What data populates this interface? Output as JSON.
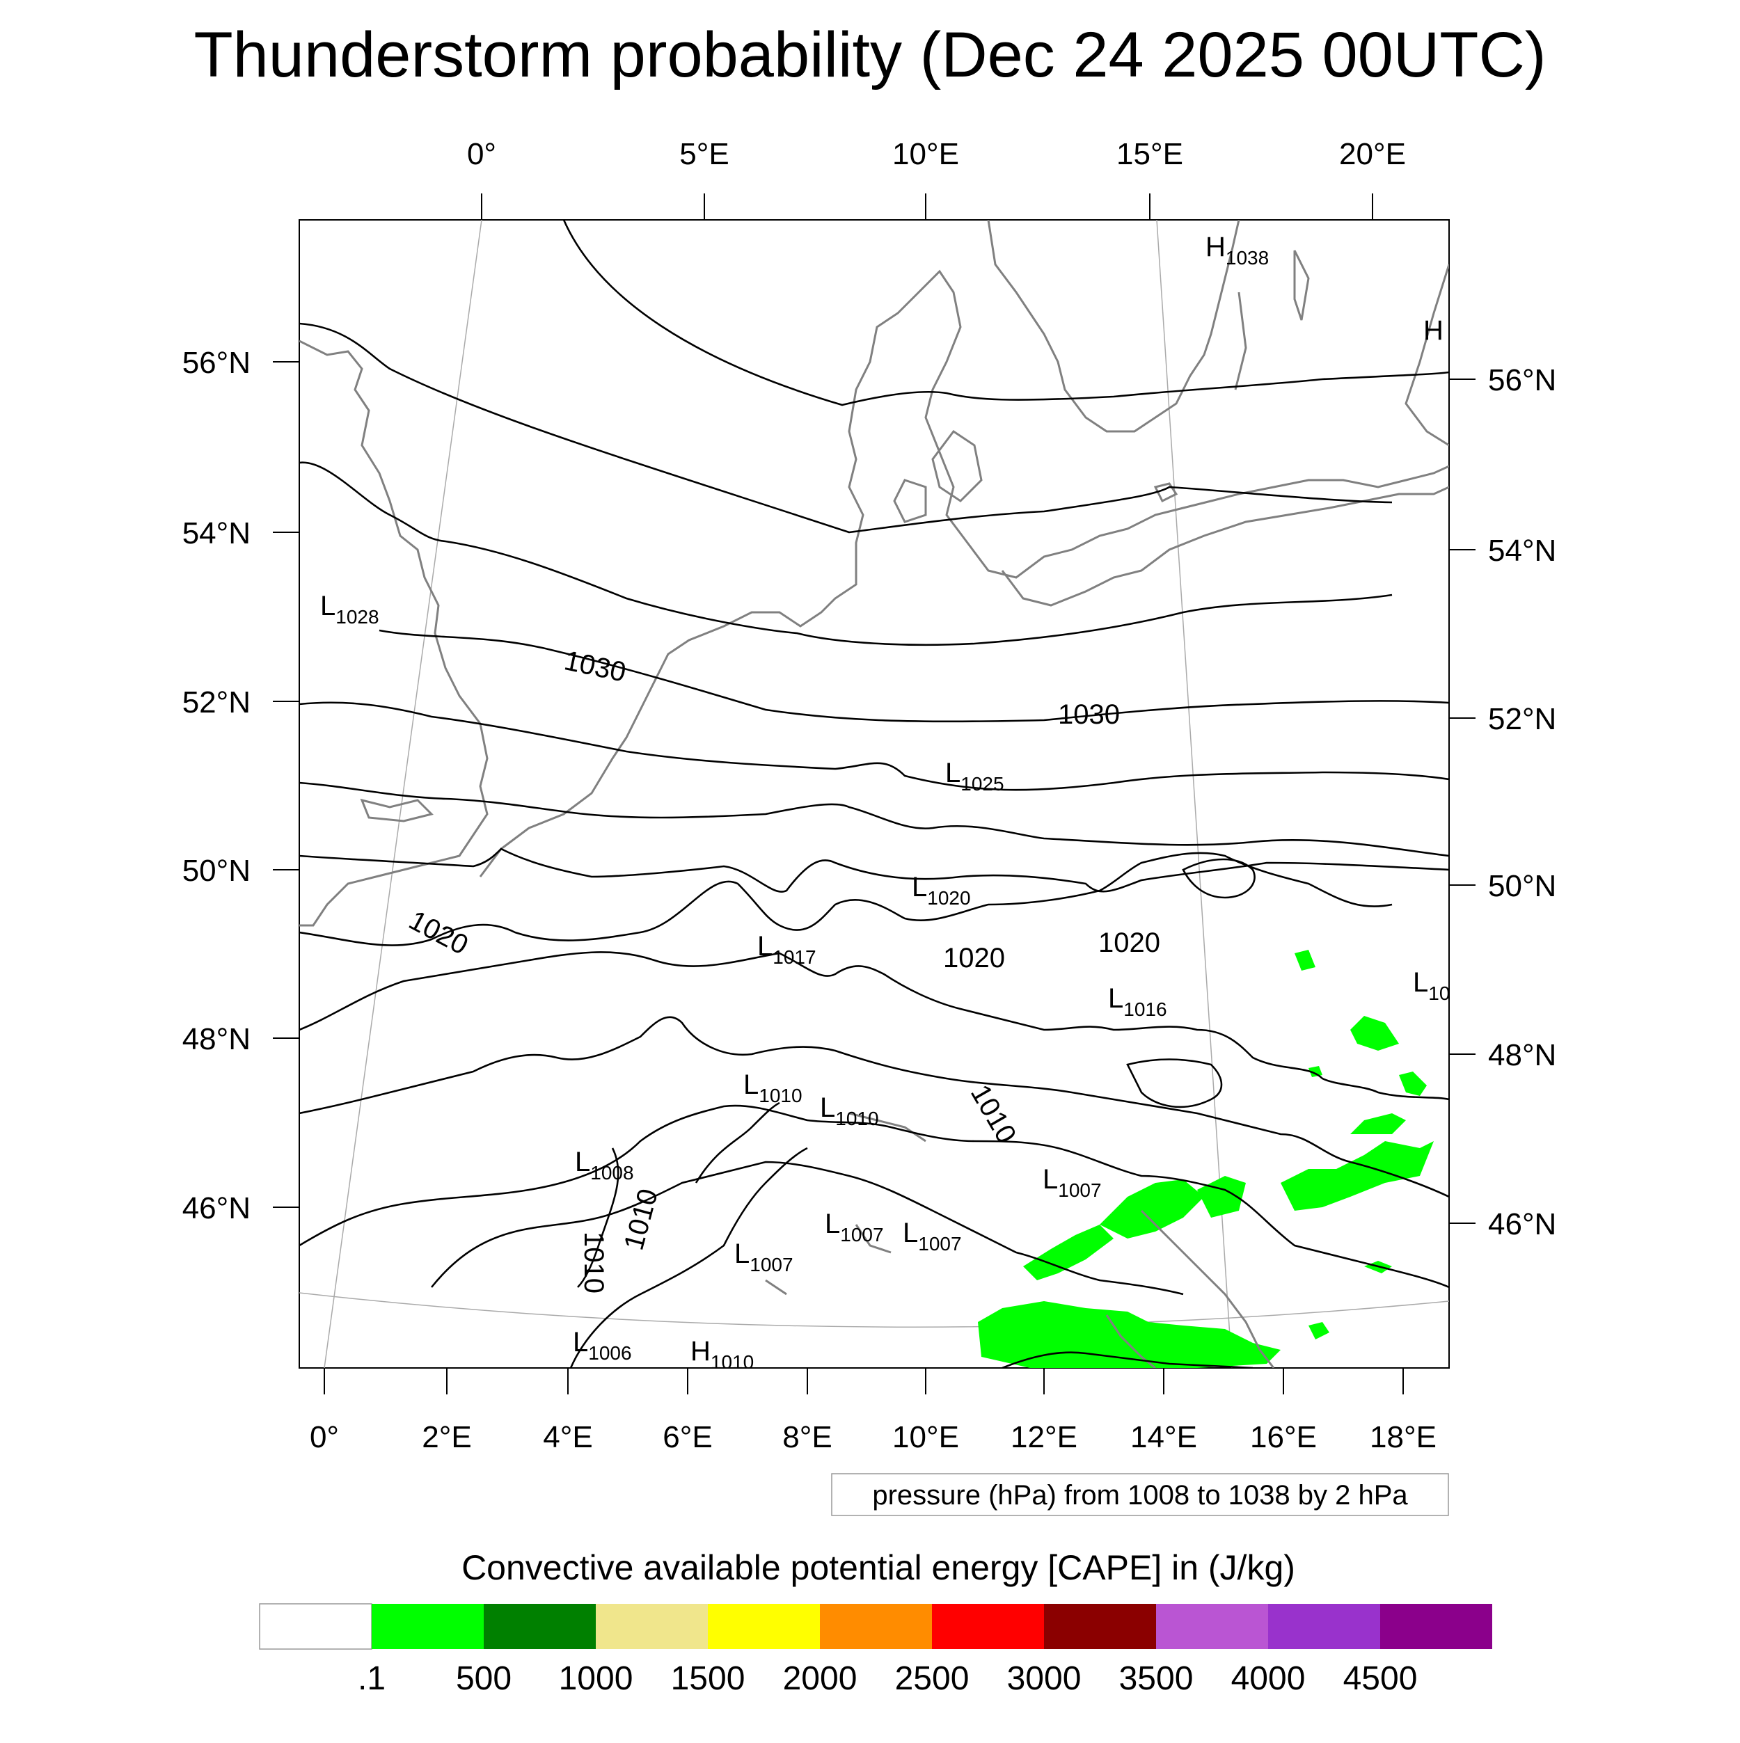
{
  "title": "Thunderstorm probability (Dec 24 2025 00UTC)",
  "top_lon_labels": [
    "0°",
    "5°E",
    "10°E",
    "15°E",
    "20°E"
  ],
  "bottom_lon_labels": [
    "0°",
    "2°E",
    "4°E",
    "6°E",
    "8°E",
    "10°E",
    "12°E",
    "14°E",
    "16°E",
    "18°E"
  ],
  "left_lat_labels": [
    "56°N",
    "54°N",
    "52°N",
    "50°N",
    "48°N",
    "46°N"
  ],
  "right_lat_labels": [
    "56°N",
    "54°N",
    "52°N",
    "50°N",
    "48°N",
    "46°N"
  ],
  "pressure_note": "pressure (hPa) from 1008 to 1038 by 2 hPa",
  "contour_labels": [
    "1030",
    "1030",
    "1020",
    "1020",
    "1020",
    "1010",
    "1010",
    "1010"
  ],
  "pressure_centers": [
    {
      "letter": "H",
      "value": "1038"
    },
    {
      "letter": "H",
      "value": ""
    },
    {
      "letter": "L",
      "value": "1028"
    },
    {
      "letter": "L",
      "value": "1025"
    },
    {
      "letter": "L",
      "value": "1020"
    },
    {
      "letter": "L",
      "value": "1017"
    },
    {
      "letter": "L",
      "value": "1016"
    },
    {
      "letter": "L",
      "value": "10"
    },
    {
      "letter": "L",
      "value": "1010"
    },
    {
      "letter": "L",
      "value": "1010"
    },
    {
      "letter": "L",
      "value": "1008"
    },
    {
      "letter": "L",
      "value": "1007"
    },
    {
      "letter": "L",
      "value": "1007"
    },
    {
      "letter": "L",
      "value": "1007"
    },
    {
      "letter": "L",
      "value": "1007"
    },
    {
      "letter": "L",
      "value": "1006"
    },
    {
      "letter": "H",
      "value": "1010"
    }
  ],
  "contour_free_labels": [
    "1010"
  ],
  "colorbar": {
    "title": "Convective available potential energy [CAPE] in (J/kg)",
    "colors": [
      "#ffffff",
      "#00ff00",
      "#008000",
      "#f0e68c",
      "#ffff00",
      "#ff8c00",
      "#ff0000",
      "#8b0000",
      "#ba55d3",
      "#9932cc",
      "#8b008b"
    ],
    "labels": [
      ".1",
      "500",
      "1000",
      "1500",
      "2000",
      "2500",
      "3000",
      "3500",
      "4000",
      "4500"
    ]
  },
  "cape_color": "#00ff00"
}
